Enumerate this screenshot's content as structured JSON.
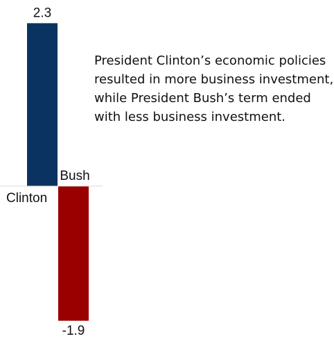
{
  "chart_data": {
    "type": "bar",
    "categories": [
      "Clinton",
      "Bush"
    ],
    "values": [
      2.3,
      -1.9
    ],
    "value_labels": [
      "2.3",
      "-1.9"
    ],
    "colors": [
      "#0b3361",
      "#990000"
    ],
    "baseline": 0,
    "ylim": [
      -1.9,
      2.3
    ],
    "grid": false,
    "legend": "none",
    "title": "",
    "xlabel": "",
    "ylabel": "",
    "annotation": "President Clinton’s economic policies resulted in more business investment, while President Bush’s term ended with less business investment."
  }
}
